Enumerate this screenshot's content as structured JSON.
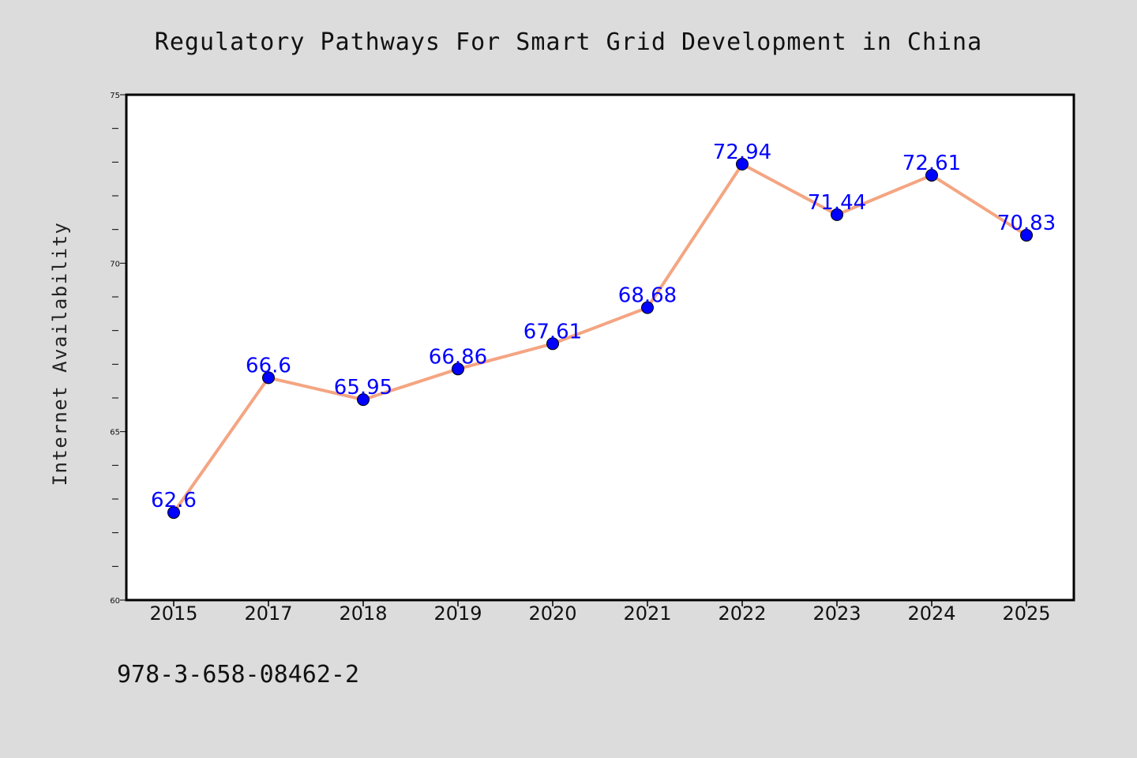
{
  "chart_data": {
    "type": "line",
    "title": "Regulatory Pathways For Smart Grid Development in China",
    "xlabel": "",
    "ylabel": "Internet Availability",
    "categories": [
      "2015",
      "2017",
      "2018",
      "2019",
      "2020",
      "2021",
      "2022",
      "2023",
      "2024",
      "2025"
    ],
    "series": [
      {
        "values": [
          62.6,
          66.6,
          65.95,
          66.86,
          67.61,
          68.68,
          72.94,
          71.44,
          72.61,
          70.83
        ],
        "labels": [
          "62.6",
          "66.6",
          "65.95",
          "66.86",
          "67.61",
          "68.68",
          "72.94",
          "71.44",
          "72.61",
          "70.83"
        ]
      }
    ],
    "ylim": [
      60,
      75
    ],
    "yticks": [
      "60",
      "65",
      "70",
      "75"
    ],
    "grid": false,
    "legend": "none"
  },
  "footnote": "978-3-658-08462-2",
  "colors": {
    "background": "#dcdcdc",
    "plot_background": "#ffffff",
    "line": "#f4a582",
    "marker": "#0000ff",
    "data_label": "#0000ff",
    "axes": "#000000"
  }
}
